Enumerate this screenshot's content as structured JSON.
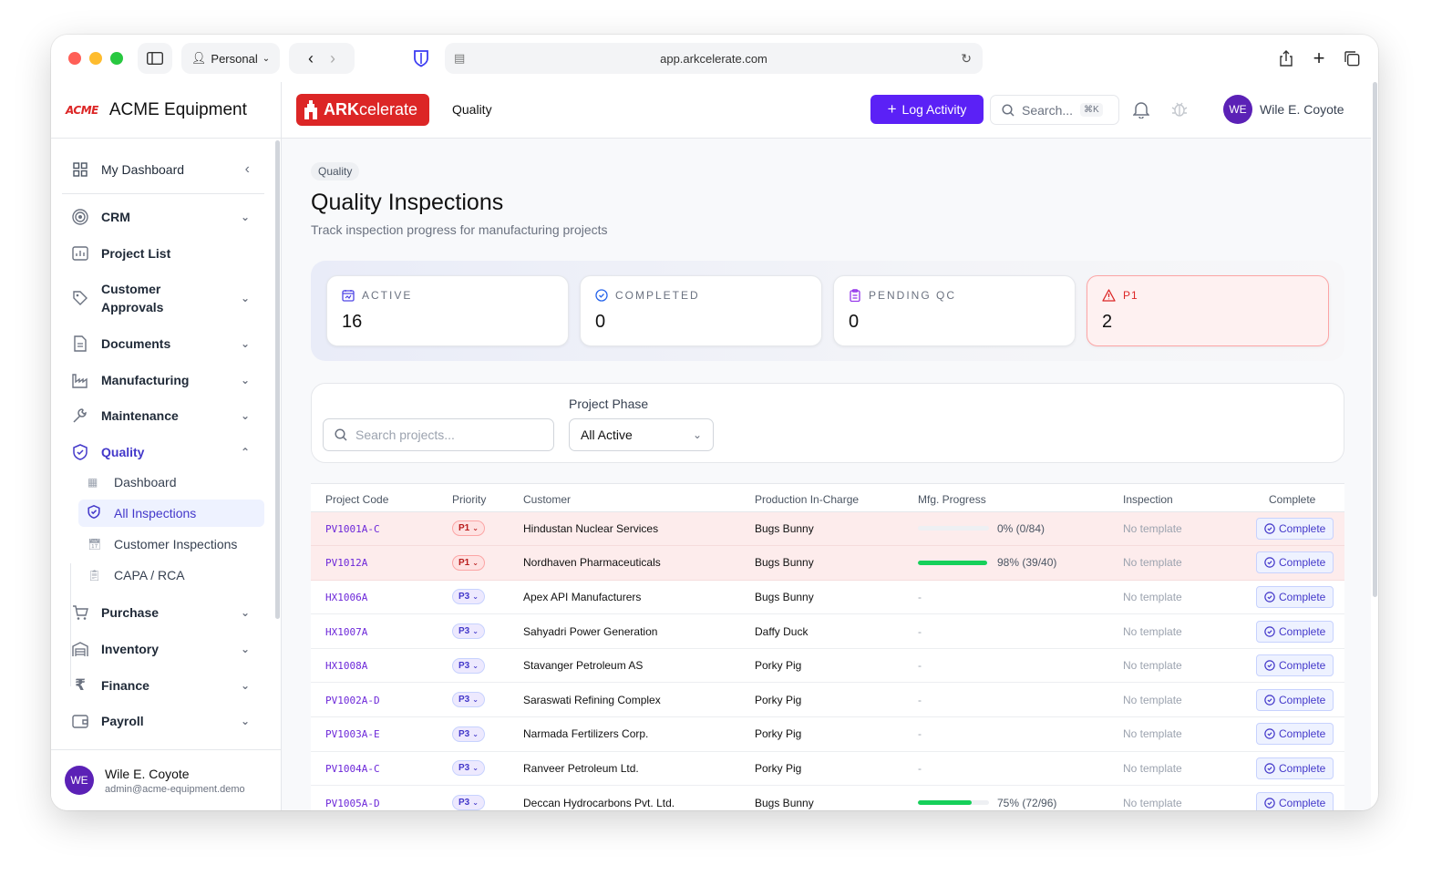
{
  "browser": {
    "profile": "Personal",
    "url": "app.arkcelerate.com"
  },
  "sidebar": {
    "brand_logo": "ACME",
    "brand_name": "ACME Equipment",
    "dashboard": "My Dashboard",
    "items": [
      {
        "label": "CRM",
        "icon": "target-icon"
      },
      {
        "label": "Project List",
        "icon": "chart-icon"
      },
      {
        "label": "Customer",
        "label2": "Approvals",
        "icon": "tag-icon"
      },
      {
        "label": "Documents",
        "icon": "document-icon"
      },
      {
        "label": "Manufacturing",
        "icon": "factory-icon"
      },
      {
        "label": "Maintenance",
        "icon": "wrench-icon"
      },
      {
        "label": "Quality",
        "icon": "shield-check-icon"
      },
      {
        "label": "Purchase",
        "icon": "cart-icon"
      },
      {
        "label": "Inventory",
        "icon": "warehouse-icon"
      },
      {
        "label": "Finance",
        "icon": "rupee-icon"
      },
      {
        "label": "Payroll",
        "icon": "wallet-icon"
      }
    ],
    "quality_sub": [
      {
        "label": "Dashboard"
      },
      {
        "label": "All Inspections"
      },
      {
        "label": "Customer Inspections"
      },
      {
        "label": "CAPA / RCA"
      }
    ],
    "user": {
      "initials": "WE",
      "name": "Wile E. Coyote",
      "email": "admin@acme-equipment.demo"
    }
  },
  "topbar": {
    "app_name_bold": "ARK",
    "app_name_rest": "celerate",
    "crumb": "Quality",
    "log_button": "Log Activity",
    "search_placeholder": "Search...",
    "search_shortcut": "⌘K",
    "user_initials": "WE",
    "user_name": "Wile E. Coyote"
  },
  "page": {
    "breadcrumb": "Quality",
    "title": "Quality Inspections",
    "subtitle": "Track inspection progress for manufacturing projects"
  },
  "stats": [
    {
      "label": "ACTIVE",
      "value": "16"
    },
    {
      "label": "COMPLETED",
      "value": "0"
    },
    {
      "label": "PENDING QC",
      "value": "0"
    },
    {
      "label": "P1",
      "value": "2"
    }
  ],
  "filters": {
    "search_placeholder": "Search projects...",
    "phase_label": "Project Phase",
    "phase_value": "All Active"
  },
  "table": {
    "headers": [
      "Project Code",
      "Priority",
      "Customer",
      "Production In-Charge",
      "Mfg. Progress",
      "Inspection",
      "Complete"
    ],
    "rows": [
      {
        "code": "PV1001A-C",
        "priority": "P1",
        "customer": "Hindustan Nuclear Services",
        "incharge": "Bugs Bunny",
        "progress": "0% (0/84)",
        "pct": 0,
        "inspection": "No template",
        "action": "Complete"
      },
      {
        "code": "PV1012A",
        "priority": "P1",
        "customer": "Nordhaven Pharmaceuticals",
        "incharge": "Bugs Bunny",
        "progress": "98% (39/40)",
        "pct": 98,
        "inspection": "No template",
        "action": "Complete"
      },
      {
        "code": "HX1006A",
        "priority": "P3",
        "customer": "Apex API Manufacturers",
        "incharge": "Bugs Bunny",
        "progress": "-",
        "pct": null,
        "inspection": "No template",
        "action": "Complete"
      },
      {
        "code": "HX1007A",
        "priority": "P3",
        "customer": "Sahyadri Power Generation",
        "incharge": "Daffy Duck",
        "progress": "-",
        "pct": null,
        "inspection": "No template",
        "action": "Complete"
      },
      {
        "code": "HX1008A",
        "priority": "P3",
        "customer": "Stavanger Petroleum AS",
        "incharge": "Porky Pig",
        "progress": "-",
        "pct": null,
        "inspection": "No template",
        "action": "Complete"
      },
      {
        "code": "PV1002A-D",
        "priority": "P3",
        "customer": "Saraswati Refining Complex",
        "incharge": "Porky Pig",
        "progress": "-",
        "pct": null,
        "inspection": "No template",
        "action": "Complete"
      },
      {
        "code": "PV1003A-E",
        "priority": "P3",
        "customer": "Narmada Fertilizers Corp.",
        "incharge": "Porky Pig",
        "progress": "-",
        "pct": null,
        "inspection": "No template",
        "action": "Complete"
      },
      {
        "code": "PV1004A-C",
        "priority": "P3",
        "customer": "Ranveer Petroleum Ltd.",
        "incharge": "Porky Pig",
        "progress": "-",
        "pct": null,
        "inspection": "No template",
        "action": "Complete"
      },
      {
        "code": "PV1005A-D",
        "priority": "P3",
        "customer": "Deccan Hydrocarbons Pvt. Ltd.",
        "incharge": "Bugs Bunny",
        "progress": "75% (72/96)",
        "pct": 75,
        "inspection": "No template",
        "action": "Complete"
      }
    ]
  },
  "colors": {
    "accent": "#5b21f6",
    "brand_red": "#dc2626",
    "progress_green": "#16d05a"
  }
}
